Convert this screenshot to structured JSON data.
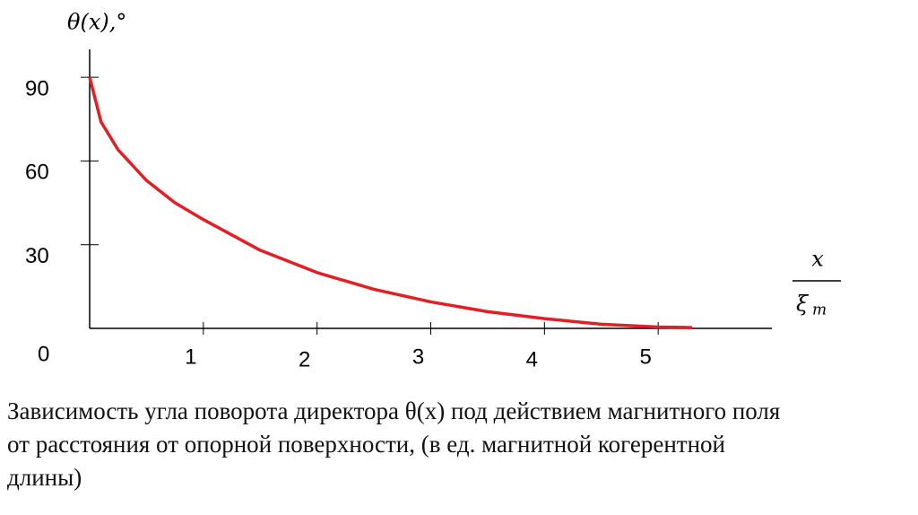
{
  "chart_data": {
    "type": "line",
    "y_label": "θ(x),°",
    "x_label_numerator": "x",
    "x_label_denominator": "ξ",
    "x_label_subscript": "m",
    "x": [
      0,
      0.1,
      0.25,
      0.5,
      0.75,
      1,
      1.5,
      2,
      2.5,
      3,
      3.5,
      4,
      4.5,
      5,
      5.3
    ],
    "series": [
      {
        "color": "#e31e24",
        "values": [
          90,
          74,
          64,
          53,
          45,
          39,
          28,
          20,
          14,
          9.5,
          6,
          3.5,
          1.5,
          0.5,
          0.3
        ]
      }
    ],
    "xlim": [
      0,
      6
    ],
    "ylim": [
      0,
      100
    ],
    "xticks": [
      1,
      2,
      3,
      4,
      5
    ],
    "yticks": [
      0,
      30,
      60,
      90
    ],
    "caption": "Зависимость угла поворота директора θ(x) под действием магнитного поля от расстояния от опорной поверхности, (в ед. магнитной когерентной длины)"
  }
}
